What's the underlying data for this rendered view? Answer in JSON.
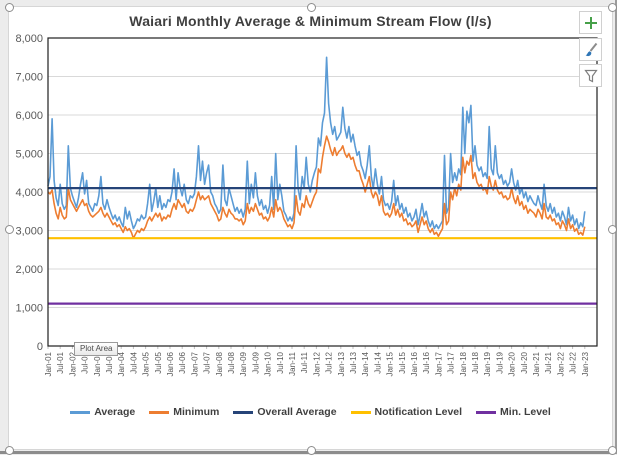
{
  "chart": {
    "title": "Waiari Monthly Average & Minimum Stream Flow (l/s)",
    "tooltip": "Plot Area"
  },
  "side_buttons": {
    "items": [
      "chart-elements",
      "chart-styles",
      "chart-filters"
    ],
    "icons": {
      "chart-elements": "plus-icon",
      "chart-styles": "paintbrush-icon",
      "chart-filters": "funnel-icon"
    }
  },
  "colors": {
    "average": "#5B9BD5",
    "minimum": "#ED7D31",
    "overall_average": "#264478",
    "notification_level": "#FFC000",
    "min_level": "#7030A0",
    "gridline": "#D9D9D9",
    "axis_text": "#595959",
    "title_text": "#3F3F3F"
  },
  "chart_data": {
    "type": "line",
    "title": "Waiari Monthly Average & Minimum Stream Flow (l/s)",
    "xlabel": "",
    "ylabel": "",
    "ylim": [
      0,
      8000
    ],
    "y_step": 1000,
    "grid": true,
    "legend_position": "bottom",
    "x_months_total": 271,
    "x_tick_every_months": 6,
    "x_tick_labels": [
      "Jan-01",
      "Jul-01",
      "Jan-02",
      "Jul-02",
      "Jan-03",
      "Jul-03",
      "Jan-04",
      "Jul-04",
      "Jan-05",
      "Jul-05",
      "Jan-06",
      "Jul-06",
      "Jan-07",
      "Jul-07",
      "Jan-08",
      "Jul-08",
      "Jan-09",
      "Jul-09",
      "Jan-10",
      "Jul-10",
      "Jan-11",
      "Jul-11",
      "Jan-12",
      "Jul-12",
      "Jan-13",
      "Jul-13",
      "Jan-14",
      "Jul-14",
      "Jan-15",
      "Jul-15",
      "Jan-16",
      "Jul-16",
      "Jan-17",
      "Jul-17",
      "Jan-18",
      "Jul-18",
      "Jan-19",
      "Jul-19",
      "Jan-20",
      "Jul-20",
      "Jan-21",
      "Jul-21",
      "Jan-22",
      "Jul-22",
      "Jan-23"
    ],
    "series": [
      {
        "name": "Average",
        "color": "#5B9BD5",
        "values": [
          4150,
          4400,
          5900,
          4300,
          3850,
          3650,
          4200,
          3700,
          3550,
          3650,
          5200,
          4100,
          3900,
          3750,
          3600,
          3850,
          4200,
          4500,
          3950,
          4300,
          3700,
          3600,
          3500,
          3700,
          3650,
          3900,
          4400,
          3700,
          3550,
          3800,
          3600,
          3450,
          3300,
          3400,
          3250,
          3350,
          3200,
          3100,
          3600,
          3300,
          3500,
          3250,
          3050,
          3150,
          3300,
          3250,
          3400,
          3300,
          3350,
          3700,
          4200,
          3500,
          3750,
          4100,
          3600,
          3900,
          3550,
          3700,
          3600,
          3800,
          3750,
          4000,
          4600,
          3800,
          4500,
          4100,
          3900,
          4200,
          3800,
          3700,
          3900,
          3850,
          3950,
          4400,
          5200,
          4300,
          4800,
          4200,
          4500,
          4700,
          4000,
          3900,
          3700,
          3600,
          3450,
          3550,
          4700,
          3800,
          3650,
          4100,
          3900,
          3700,
          3500,
          3600,
          3450,
          3550,
          3350,
          3550,
          4800,
          3700,
          4200,
          3850,
          4500,
          3900,
          3650,
          3800,
          3550,
          3650,
          3450,
          3650,
          4400,
          3550,
          5000,
          3800,
          4200,
          3900,
          3500,
          3400,
          3250,
          3350,
          3250,
          3450,
          5200,
          4100,
          3800,
          4400,
          4100,
          4900,
          4200,
          4000,
          4300,
          4500,
          4650,
          5400,
          5200,
          5800,
          6050,
          7500,
          6300,
          5800,
          5500,
          5700,
          5350,
          5450,
          5550,
          6200,
          5650,
          5400,
          5700,
          5300,
          5500,
          5200,
          4950,
          5050,
          4700,
          4550,
          4350,
          4700,
          5200,
          4400,
          4100,
          4600,
          4200,
          3950,
          4400,
          3800,
          3650,
          3700,
          3550,
          3750,
          4300,
          3650,
          3900,
          3550,
          3700,
          3450,
          3600,
          3350,
          3450,
          3250,
          3350,
          3550,
          3150,
          3400,
          3700,
          3350,
          3500,
          3250,
          3100,
          3250,
          3050,
          3150,
          3050,
          3150,
          3250,
          4950,
          3450,
          3600,
          5000,
          4250,
          4500,
          4300,
          4600,
          4450,
          6200,
          5000,
          6100,
          5800,
          6250,
          4800,
          5200,
          4700,
          4550,
          4650,
          4400,
          4500,
          4350,
          5700,
          4600,
          4450,
          5200,
          4500,
          4350,
          4450,
          4200,
          4300,
          4150,
          4250,
          4600,
          4250,
          4050,
          4300,
          3950,
          4100,
          3850,
          4000,
          3750,
          3900,
          3800,
          3700,
          3650,
          3900,
          3700,
          3550,
          4200,
          3650,
          3500,
          3700,
          3450,
          3600,
          3350,
          3450,
          3250,
          3500,
          3350,
          3150,
          3600,
          3250,
          3400,
          3150,
          3300,
          3050,
          3200,
          3100,
          3500
        ]
      },
      {
        "name": "Minimum",
        "color": "#ED7D31",
        "values": [
          4000,
          3950,
          4050,
          3700,
          3450,
          3300,
          3600,
          3400,
          3300,
          3350,
          4100,
          3800,
          3700,
          3600,
          3500,
          3600,
          3700,
          3800,
          3650,
          3700,
          3500,
          3400,
          3350,
          3400,
          3450,
          3500,
          3600,
          3450,
          3350,
          3450,
          3350,
          3250,
          3150,
          3200,
          3100,
          3150,
          3050,
          2950,
          3100,
          3000,
          3050,
          2950,
          2800,
          2900,
          3000,
          2950,
          3050,
          3000,
          3100,
          3250,
          3350,
          3250,
          3350,
          3450,
          3350,
          3450,
          3250,
          3350,
          3300,
          3400,
          3350,
          3550,
          3700,
          3550,
          3800,
          3700,
          3600,
          3700,
          3500,
          3450,
          3550,
          3500,
          3600,
          3800,
          4000,
          3800,
          3900,
          3800,
          3850,
          3900,
          3700,
          3600,
          3500,
          3400,
          3250,
          3300,
          3600,
          3450,
          3350,
          3550,
          3450,
          3400,
          3300,
          3300,
          3250,
          3300,
          3150,
          3250,
          3700,
          3450,
          3600,
          3500,
          3700,
          3550,
          3400,
          3450,
          3300,
          3350,
          3250,
          3350,
          3600,
          3350,
          3800,
          3500,
          3600,
          3500,
          3300,
          3200,
          3100,
          3150,
          3050,
          3200,
          3900,
          3500,
          3400,
          3700,
          3600,
          3900,
          3700,
          3600,
          3750,
          3900,
          4000,
          4600,
          4500,
          4900,
          5200,
          5450,
          5300,
          5100,
          4950,
          5150,
          4950,
          5050,
          5100,
          5200,
          5000,
          4900,
          5000,
          4850,
          4900,
          4700,
          4550,
          4550,
          4350,
          4200,
          4000,
          4200,
          4400,
          4000,
          3850,
          4000,
          3900,
          3650,
          3900,
          3500,
          3400,
          3450,
          3350,
          3450,
          3700,
          3400,
          3550,
          3350,
          3450,
          3250,
          3300,
          3150,
          3200,
          3100,
          3150,
          3250,
          2950,
          3150,
          3350,
          3150,
          3250,
          3050,
          2950,
          3050,
          2900,
          2950,
          2850,
          2950,
          3050,
          3700,
          3150,
          3250,
          4000,
          3800,
          4100,
          3900,
          4200,
          4050,
          4900,
          4500,
          4800,
          4700,
          4950,
          4350,
          4500,
          4250,
          4150,
          4200,
          4050,
          4100,
          3950,
          4400,
          4150,
          4050,
          4300,
          4050,
          3950,
          4000,
          3850,
          3900,
          3800,
          3850,
          4100,
          3850,
          3700,
          3900,
          3650,
          3750,
          3550,
          3650,
          3450,
          3550,
          3500,
          3450,
          3350,
          3550,
          3450,
          3300,
          3700,
          3350,
          3300,
          3400,
          3250,
          3300,
          3150,
          3200,
          3050,
          3250,
          3150,
          3000,
          3300,
          3050,
          3150,
          2980,
          3050,
          2900,
          2950,
          2880,
          3100
        ]
      },
      {
        "name": "Overall Average",
        "color": "#264478",
        "constant": 4100
      },
      {
        "name": "Notification Level",
        "color": "#FFC000",
        "constant": 2800
      },
      {
        "name": "Min. Level",
        "color": "#7030A0",
        "constant": 1100
      }
    ]
  }
}
